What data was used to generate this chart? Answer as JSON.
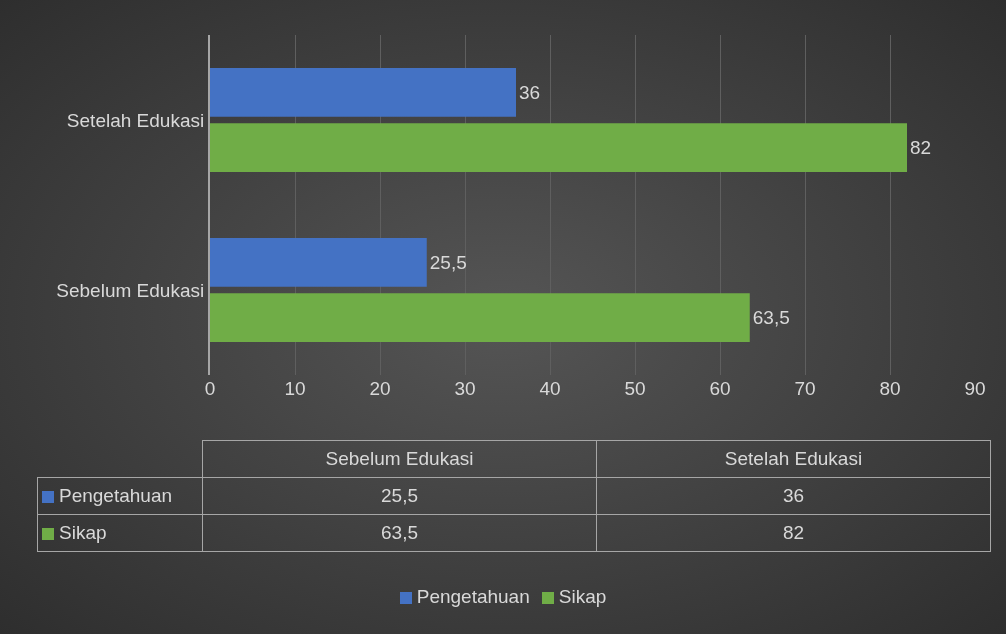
{
  "chart_data": {
    "type": "bar",
    "orientation": "horizontal",
    "categories": [
      "Setelah Edukasi",
      "Sebelum Edukasi"
    ],
    "series": [
      {
        "name": "Pengetahuan",
        "color": "#4472c4",
        "values": [
          36,
          25.5
        ],
        "value_labels": [
          "36",
          "25,5"
        ]
      },
      {
        "name": "Sikap",
        "color": "#70ad47",
        "values": [
          82,
          63.5
        ],
        "value_labels": [
          "82",
          "63,5"
        ]
      }
    ],
    "xlim": [
      0,
      90
    ],
    "xticks": [
      0,
      10,
      20,
      30,
      40,
      50,
      60,
      70,
      80,
      90
    ],
    "grid": "x",
    "legend": "bottom"
  }
}
